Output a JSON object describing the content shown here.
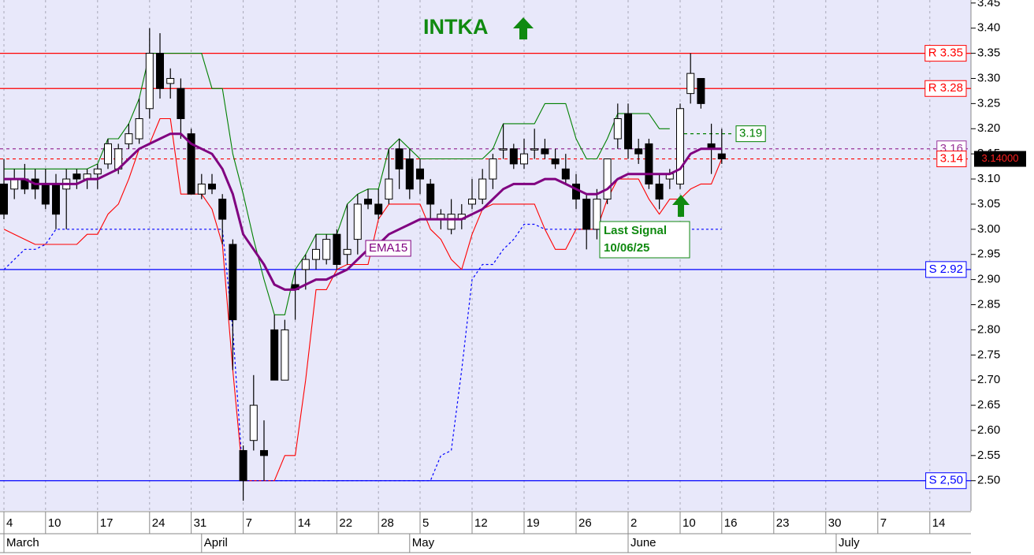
{
  "chart_data": {
    "type": "candlestick",
    "title": "INTKA",
    "categories": [
      "4",
      null,
      null,
      null,
      "10",
      null,
      null,
      null,
      null,
      "17",
      null,
      null,
      null,
      null,
      "24",
      null,
      null,
      null,
      "31",
      null,
      null,
      null,
      null,
      "7",
      null,
      null,
      null,
      null,
      "14",
      null,
      null,
      null,
      "22",
      null,
      null,
      null,
      "28",
      null,
      null,
      null,
      "5",
      null,
      null,
      null,
      null,
      "12",
      null,
      null,
      null,
      null,
      "19",
      null,
      null,
      null,
      null,
      "26",
      null,
      null,
      null,
      null,
      "2",
      null,
      null,
      null,
      null,
      "10",
      null,
      null,
      null,
      "16",
      null,
      null,
      null,
      null,
      "23",
      null,
      null,
      null,
      null,
      "30",
      null,
      null,
      null,
      null,
      "7",
      null,
      null,
      null,
      null,
      "14",
      null,
      null,
      null,
      null
    ],
    "months": [
      "March",
      null,
      null,
      null,
      null,
      null,
      null,
      null,
      null,
      null,
      null,
      null,
      null,
      null,
      null,
      null,
      null,
      null,
      null,
      "April",
      null,
      null,
      null,
      null,
      null,
      null,
      null,
      null,
      null,
      null,
      null,
      null,
      null,
      null,
      null,
      null,
      null,
      null,
      null,
      "May",
      null,
      null,
      null,
      null,
      null,
      null,
      null,
      null,
      null,
      null,
      null,
      null,
      null,
      null,
      null,
      null,
      null,
      null,
      null,
      null,
      "June",
      null,
      null,
      null,
      null,
      null,
      null,
      null,
      null,
      null,
      null,
      null,
      null,
      null,
      null,
      null,
      null,
      null,
      null,
      null,
      "July",
      null,
      null,
      null,
      null,
      null,
      null,
      null,
      null,
      null,
      null,
      null,
      null,
      null
    ],
    "open": [
      3.09,
      3.08,
      3.1,
      3.1,
      3.09,
      3.09,
      3.08,
      3.11,
      3.1,
      3.11,
      3.13,
      3.12,
      3.17,
      3.18,
      3.24,
      3.35,
      3.29,
      3.28,
      3.19,
      3.07,
      3.09,
      3.06,
      2.97,
      2.56,
      2.58,
      2.56,
      2.8,
      2.7,
      2.89,
      2.92,
      2.94,
      2.94,
      2.99,
      2.95,
      2.98,
      3.06,
      3.05,
      3.06,
      3.16,
      3.14,
      3.12,
      3.09,
      3.02,
      3.0,
      3.02,
      3.05,
      3.06,
      3.1,
      3.16,
      3.16,
      3.13,
      3.16,
      3.16,
      3.14,
      3.12,
      3.09,
      3.06,
      3.0,
      3.06,
      3.18,
      3.23,
      3.16,
      3.17,
      3.09,
      3.1,
      3.09,
      3.27,
      3.3,
      3.17,
      3.15,
      null,
      null,
      null,
      null,
      null,
      null,
      null,
      null,
      null,
      null,
      null,
      null,
      null,
      null,
      null,
      null,
      null,
      null,
      null,
      null,
      null,
      null,
      null,
      null
    ],
    "high": [
      3.14,
      3.12,
      3.13,
      3.12,
      3.12,
      3.11,
      3.12,
      3.12,
      3.12,
      3.13,
      3.18,
      3.17,
      3.21,
      3.26,
      3.4,
      3.39,
      3.32,
      3.3,
      3.2,
      3.11,
      3.11,
      3.07,
      2.98,
      2.57,
      2.71,
      2.62,
      2.83,
      2.82,
      2.92,
      2.95,
      2.99,
      2.99,
      3.0,
      3.05,
      3.07,
      3.08,
      3.08,
      3.16,
      3.18,
      3.16,
      3.14,
      3.1,
      3.04,
      3.06,
      3.05,
      3.1,
      3.12,
      3.15,
      3.21,
      3.17,
      3.18,
      3.2,
      3.18,
      3.16,
      3.15,
      3.11,
      3.07,
      3.08,
      3.14,
      3.25,
      3.25,
      3.18,
      3.18,
      3.11,
      3.12,
      3.25,
      3.35,
      3.3,
      3.21,
      3.2,
      null,
      null,
      null,
      null,
      null,
      null,
      null,
      null,
      null,
      null,
      null,
      null,
      null,
      null,
      null,
      null,
      null,
      null,
      null,
      null,
      null,
      null,
      null,
      null
    ],
    "low": [
      3.02,
      3.06,
      3.07,
      3.06,
      3.04,
      3.0,
      3.0,
      3.08,
      3.08,
      3.08,
      3.12,
      3.11,
      3.16,
      3.17,
      3.22,
      3.26,
      3.26,
      3.18,
      3.07,
      3.06,
      3.07,
      2.97,
      2.72,
      2.46,
      2.56,
      2.5,
      2.7,
      2.7,
      2.82,
      2.88,
      2.92,
      2.93,
      2.92,
      2.93,
      2.95,
      3.04,
      3.02,
      3.05,
      3.08,
      3.06,
      3.07,
      3.02,
      3.0,
      2.99,
      3.0,
      3.04,
      3.05,
      3.08,
      3.14,
      3.12,
      3.12,
      3.14,
      3.14,
      3.12,
      3.09,
      3.04,
      2.96,
      2.98,
      3.05,
      3.16,
      3.14,
      3.13,
      3.08,
      3.04,
      3.08,
      3.08,
      3.25,
      3.24,
      3.11,
      3.13,
      null,
      null,
      null,
      null,
      null,
      null,
      null,
      null,
      null,
      null,
      null,
      null,
      null,
      null,
      null,
      null,
      null,
      null,
      null,
      null,
      null,
      null,
      null,
      null
    ],
    "close": [
      3.03,
      3.1,
      3.08,
      3.08,
      3.05,
      3.03,
      3.1,
      3.1,
      3.11,
      3.12,
      3.17,
      3.16,
      3.19,
      3.22,
      3.35,
      3.28,
      3.3,
      3.22,
      3.07,
      3.09,
      3.08,
      3.02,
      2.82,
      2.5,
      2.65,
      2.55,
      2.7,
      2.8,
      2.88,
      2.94,
      2.96,
      2.98,
      2.93,
      2.96,
      3.05,
      3.05,
      3.03,
      3.1,
      3.12,
      3.08,
      3.1,
      3.05,
      3.03,
      3.03,
      3.03,
      3.06,
      3.1,
      3.14,
      3.16,
      3.13,
      3.15,
      3.16,
      3.15,
      3.13,
      3.1,
      3.06,
      3.0,
      3.06,
      3.14,
      3.22,
      3.16,
      3.15,
      3.09,
      3.06,
      3.11,
      3.24,
      3.31,
      3.25,
      3.16,
      3.14,
      null,
      null,
      null,
      null,
      null,
      null,
      null,
      null,
      null,
      null,
      null,
      null,
      null,
      null,
      null,
      null,
      null,
      null,
      null,
      null,
      null,
      null,
      null,
      null
    ],
    "series": [
      {
        "name": "EMA15",
        "color": "#800080",
        "values": [
          3.1,
          3.1,
          3.1,
          3.09,
          3.09,
          3.09,
          3.09,
          3.09,
          3.1,
          3.1,
          3.11,
          3.12,
          3.14,
          3.16,
          3.17,
          3.18,
          3.19,
          3.19,
          3.17,
          3.16,
          3.15,
          3.12,
          3.07,
          2.99,
          2.96,
          2.93,
          2.89,
          2.88,
          2.88,
          2.89,
          2.9,
          2.9,
          2.91,
          2.92,
          2.94,
          2.96,
          2.97,
          2.99,
          3.0,
          3.01,
          3.02,
          3.02,
          3.02,
          3.02,
          3.02,
          3.03,
          3.04,
          3.06,
          3.08,
          3.09,
          3.09,
          3.09,
          3.1,
          3.1,
          3.09,
          3.08,
          3.07,
          3.07,
          3.08,
          3.1,
          3.11,
          3.11,
          3.11,
          3.11,
          3.11,
          3.12,
          3.15,
          3.16,
          3.16,
          3.16,
          null,
          null,
          null,
          null,
          null,
          null,
          null,
          null,
          null,
          null,
          null,
          null,
          null,
          null,
          null,
          null,
          null,
          null,
          null,
          null,
          null,
          null,
          null,
          null
        ]
      }
    ],
    "bands": [
      {
        "color": "#008000",
        "style": "solid",
        "values": [
          3.12,
          3.12,
          3.12,
          3.12,
          3.12,
          3.12,
          3.12,
          3.12,
          3.12,
          3.13,
          3.18,
          3.18,
          3.21,
          3.26,
          3.35,
          3.35,
          3.35,
          3.35,
          3.35,
          3.35,
          3.28,
          3.28,
          3.15,
          3.07,
          2.98,
          2.9,
          2.83,
          2.83,
          2.92,
          2.95,
          2.99,
          2.99,
          2.99,
          3.05,
          3.07,
          3.08,
          3.08,
          3.16,
          3.18,
          3.16,
          3.14,
          3.14,
          3.14,
          3.14,
          3.14,
          3.14,
          3.14,
          3.16,
          3.21,
          3.21,
          3.21,
          3.21,
          3.25,
          3.25,
          3.25,
          3.18,
          3.14,
          3.14,
          3.18,
          3.23,
          3.23,
          3.23,
          3.23,
          3.2,
          3.2,
          null,
          null,
          null,
          null,
          null,
          null,
          null,
          null,
          null,
          null,
          null,
          null,
          null,
          null,
          null,
          null,
          null,
          null,
          null,
          null,
          null,
          null,
          null,
          null,
          null,
          null,
          null,
          null,
          null
        ]
      },
      {
        "color": "#ff0000",
        "style": "solid",
        "values": [
          3.0,
          2.99,
          2.98,
          2.97,
          2.97,
          2.97,
          2.97,
          2.97,
          2.99,
          2.99,
          3.03,
          3.05,
          3.1,
          3.16,
          3.17,
          3.22,
          3.22,
          3.07,
          3.07,
          3.07,
          3.04,
          2.97,
          2.72,
          2.5,
          2.5,
          2.5,
          2.5,
          2.55,
          2.55,
          2.7,
          2.88,
          2.88,
          2.92,
          2.93,
          2.93,
          2.93,
          3.02,
          3.05,
          3.05,
          3.05,
          3.05,
          3.0,
          2.98,
          2.94,
          2.92,
          2.99,
          3.04,
          3.05,
          3.05,
          3.05,
          3.05,
          3.05,
          3.0,
          2.96,
          2.96,
          3.0,
          3.0,
          3.0,
          3.06,
          3.1,
          3.1,
          3.1,
          3.06,
          3.03,
          3.06,
          3.06,
          3.08,
          3.09,
          3.09,
          3.14,
          null,
          null,
          null,
          null,
          null,
          null,
          null,
          null,
          null,
          null,
          null,
          null,
          null,
          null,
          null,
          null,
          null,
          null,
          null,
          null,
          null,
          null,
          null,
          null
        ]
      },
      {
        "color": "#0000ff",
        "style": "dotted",
        "values": [
          2.92,
          2.94,
          2.96,
          2.96,
          2.97,
          3.0,
          3.0,
          3.0,
          3.0,
          3.0,
          3.0,
          3.0,
          3.0,
          3.0,
          3.0,
          3.0,
          3.0,
          3.0,
          3.0,
          3.0,
          3.0,
          3.0,
          2.8,
          2.5,
          2.5,
          2.5,
          2.5,
          2.5,
          2.5,
          2.5,
          2.5,
          2.5,
          2.5,
          2.5,
          2.5,
          2.5,
          2.5,
          2.5,
          2.5,
          2.5,
          2.5,
          2.5,
          2.55,
          2.56,
          2.72,
          2.9,
          2.93,
          2.93,
          2.96,
          2.98,
          3.01,
          3.01,
          3.0,
          3.0,
          3.0,
          3.0,
          3.0,
          3.0,
          3.0,
          3.0,
          3.0,
          3.0,
          3.0,
          3.0,
          3.0,
          3.0,
          3.0,
          3.0,
          3.0,
          3.0,
          null,
          null,
          null,
          null,
          null,
          null,
          null,
          null,
          null,
          null,
          null,
          null,
          null,
          null,
          null,
          null,
          null,
          null,
          null,
          null,
          null,
          null,
          null,
          null
        ]
      }
    ],
    "levels": [
      {
        "value": 3.35,
        "label": "R 3.35",
        "color": "#ff0000",
        "style": "solid",
        "span": "full"
      },
      {
        "value": 3.28,
        "label": "R 3.28",
        "color": "#ff0000",
        "style": "solid",
        "span": "full"
      },
      {
        "value": 3.16,
        "label": "3.16",
        "color": "#993399",
        "style": "dashed",
        "span": "full"
      },
      {
        "value": 3.14,
        "label": "3.14",
        "color": "#ff0000",
        "style": "dashed",
        "span": "full"
      },
      {
        "value": 3.19,
        "label": "3.19",
        "color": "#008000",
        "style": "dashed",
        "span": "short"
      },
      {
        "value": 2.92,
        "label": "S 2.92",
        "color": "#0000ff",
        "style": "solid",
        "span": "full"
      },
      {
        "value": 2.5,
        "label": "S 2,50",
        "color": "#0000ff",
        "style": "solid",
        "span": "full"
      }
    ],
    "last_price": {
      "value": 3.14,
      "label": "3.14000"
    },
    "signal": [
      "Last Signal",
      "10/06/25"
    ],
    "ylim": [
      2.44,
      3.456
    ],
    "yticks": [
      {
        "value": 2.5,
        "label": "2.50"
      },
      {
        "value": 2.55,
        "label": "2.55"
      },
      {
        "value": 2.6,
        "label": "2.60"
      },
      {
        "value": 2.65,
        "label": "2.65"
      },
      {
        "value": 2.7,
        "label": "2.70"
      },
      {
        "value": 2.75,
        "label": "2.75"
      },
      {
        "value": 2.8,
        "label": "2.80"
      },
      {
        "value": 2.85,
        "label": "2.85"
      },
      {
        "value": 2.9,
        "label": "2.90"
      },
      {
        "value": 2.95,
        "label": "2.95"
      },
      {
        "value": 3.0,
        "label": "3.00"
      },
      {
        "value": 3.05,
        "label": "3.05"
      },
      {
        "value": 3.1,
        "label": "3.10"
      },
      {
        "value": 3.15,
        "label": "3.15"
      },
      {
        "value": 3.2,
        "label": "3.20"
      },
      {
        "value": 3.25,
        "label": "3.25"
      },
      {
        "value": 3.3,
        "label": "3.30"
      },
      {
        "value": 3.35,
        "label": "3.35"
      },
      {
        "value": 3.4,
        "label": "3.40"
      },
      {
        "value": 3.45,
        "label": "3.45"
      }
    ],
    "grid": true
  }
}
